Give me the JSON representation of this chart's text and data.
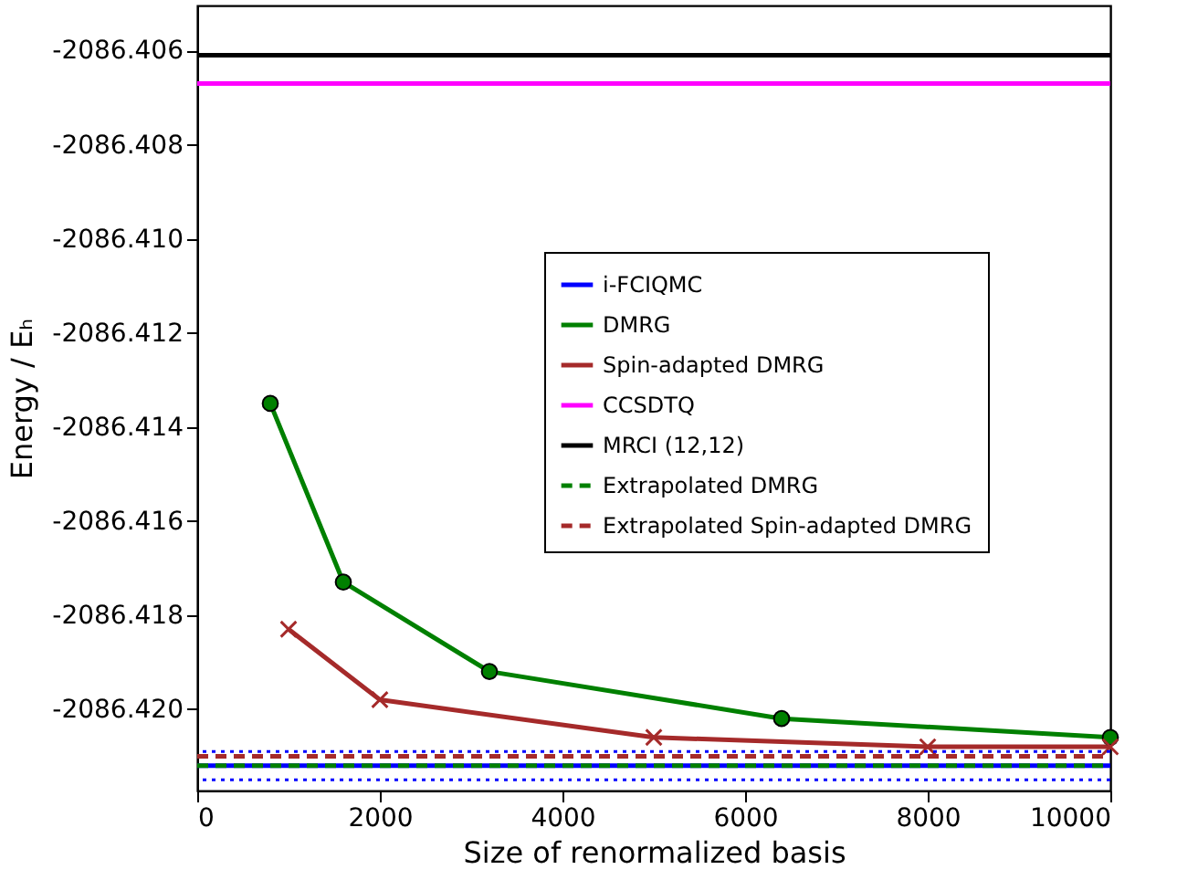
{
  "chart_data": {
    "type": "line",
    "xlabel": "Size of renormalized basis",
    "ylabel": "Energy / Eₕ",
    "xlim": [
      0,
      10000
    ],
    "xticks": [
      0,
      2000,
      4000,
      6000,
      8000,
      10000
    ],
    "ylim": [
      -2086.42173,
      -2086.40504
    ],
    "yticks": [
      {
        "value": -2086.42,
        "label": "-2086.420"
      },
      {
        "value": -2086.418,
        "label": "-2086.418"
      },
      {
        "value": -2086.416,
        "label": "-2086.416"
      },
      {
        "value": -2086.414,
        "label": "-2086.414"
      },
      {
        "value": -2086.412,
        "label": "-2086.412"
      },
      {
        "value": -2086.41,
        "label": "-2086.410"
      },
      {
        "value": -2086.408,
        "label": "-2086.408"
      },
      {
        "value": -2086.406,
        "label": "-2086.406"
      }
    ],
    "grid": false,
    "legend": "right",
    "series": [
      {
        "name": "i-FCIQMC",
        "color": "#0000ff",
        "marker": "none",
        "line_style": "solid",
        "x": [
          0,
          10000
        ],
        "values": [
          -2086.4212,
          -2086.4212
        ]
      },
      {
        "name": "DMRG",
        "color": "#008000",
        "marker": "circle",
        "line_style": "solid",
        "x": [
          800,
          1600,
          3200,
          6400,
          10000
        ],
        "values": [
          -2086.4135,
          -2086.4173,
          -2086.4192,
          -2086.4202,
          -2086.4206
        ]
      },
      {
        "name": "Spin-adapted DMRG",
        "color": "#a52a2a",
        "marker": "cross",
        "line_style": "solid",
        "x": [
          1000,
          2000,
          5000,
          8000,
          10000
        ],
        "values": [
          -2086.4183,
          -2086.4198,
          -2086.4206,
          -2086.4208,
          -2086.4208
        ]
      },
      {
        "name": "CCSDTQ",
        "color": "#ff00ff",
        "marker": "none",
        "line_style": "solid",
        "x": [
          0,
          10000
        ],
        "values": [
          -2086.4067,
          -2086.4067
        ]
      },
      {
        "name": "MRCI (12,12)",
        "color": "#000000",
        "marker": "none",
        "line_style": "solid",
        "x": [
          0,
          10000
        ],
        "values": [
          -2086.4061,
          -2086.4061
        ]
      },
      {
        "name": "Extrapolated DMRG",
        "color": "#008000",
        "marker": "none",
        "line_style": "dashed",
        "x": [
          0,
          10000
        ],
        "values": [
          -2086.4212,
          -2086.4212
        ]
      },
      {
        "name": "Extrapolated Spin-adapted DMRG",
        "color": "#a52a2a",
        "marker": "none",
        "line_style": "dashed",
        "x": [
          0,
          10000
        ],
        "values": [
          -2086.421,
          -2086.421
        ]
      }
    ],
    "ref_lines": [
      {
        "axis": "y",
        "value": -2086.4209,
        "color": "#0000ff",
        "line_style": "dotted"
      },
      {
        "axis": "y",
        "value": -2086.4215,
        "color": "#0000ff",
        "line_style": "dotted"
      }
    ]
  }
}
